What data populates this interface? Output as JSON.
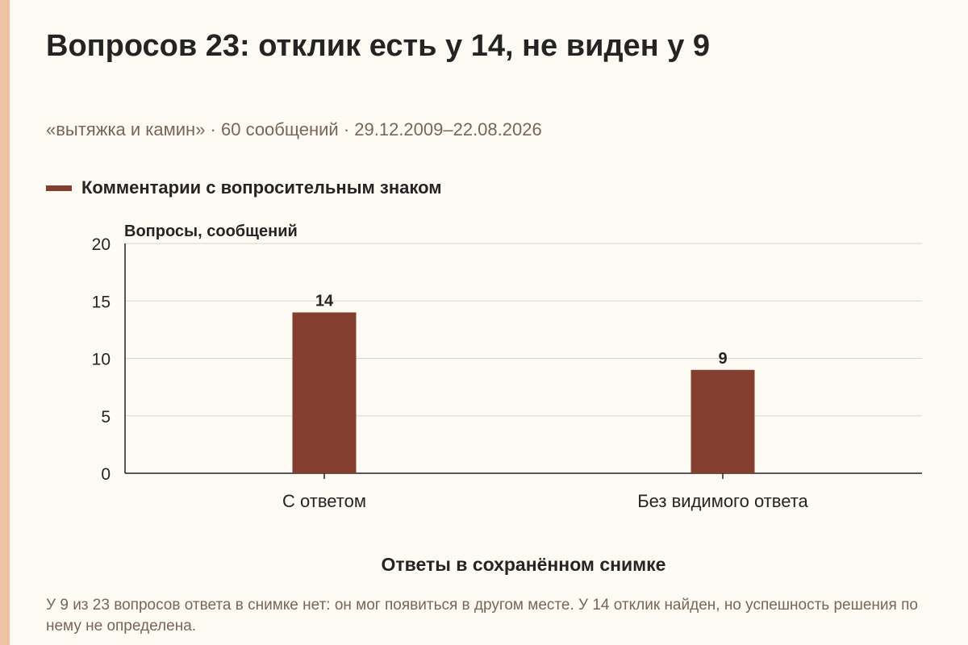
{
  "title": "Вопросов 23: отклик есть у 14, не виден у 9",
  "subtitle": "«вытяжка и камин» · 60 сообщений · 29.12.2009–22.08.2026",
  "footnote": "У 9 из 23 вопросов ответа в снимке нет: он мог появиться в другом месте. У 14 отклик найден, но успешность решения по нему не определена.",
  "colors": {
    "background": "#fdfbf4",
    "accent_strip": "#efc2a6",
    "bar": "#843e2f",
    "grid": "#d9d6cf",
    "axis": "#222222"
  },
  "chart_data": {
    "type": "bar",
    "categories": [
      "С ответом",
      "Без видимого ответа"
    ],
    "series": [
      {
        "name": "Комментарии с вопросительным знаком",
        "values": [
          14,
          9
        ]
      }
    ],
    "data_labels": [
      "14",
      "9"
    ],
    "ylabel": "Вопросы, сообщений",
    "xlabel": "Ответы в сохранённом снимке",
    "ylim": [
      0,
      20
    ],
    "yticks": [
      0,
      5,
      10,
      15,
      20
    ],
    "grid": true,
    "legend": "top-left"
  }
}
